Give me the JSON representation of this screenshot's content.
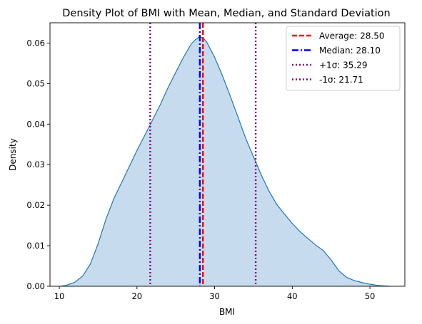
{
  "chart_data": {
    "type": "area",
    "title": "Density Plot of BMI with Mean, Median, and Standard Deviation",
    "xlabel": "BMI",
    "ylabel": "Density",
    "xlim": [
      8.8,
      54.5
    ],
    "ylim": [
      0,
      0.065
    ],
    "xticks": [
      10,
      20,
      30,
      40,
      50
    ],
    "yticks": [
      0.0,
      0.01,
      0.02,
      0.03,
      0.04,
      0.05,
      0.06
    ],
    "grid": false,
    "legend_position": "top-right",
    "fill_color": "#c6dbed",
    "line_color": "#1f77b4",
    "series": [
      {
        "x": [
          10.2,
          11,
          12,
          13,
          14,
          15,
          16,
          17,
          18,
          19,
          20,
          21,
          22,
          23,
          24,
          25,
          26,
          27,
          27.5,
          28,
          28.5,
          29,
          30,
          31,
          32,
          33,
          34,
          35,
          36,
          37,
          38,
          39,
          40,
          41,
          42,
          43,
          44,
          45,
          46,
          47,
          48,
          49,
          50,
          51,
          52.5
        ],
        "y": [
          0.0,
          0.0003,
          0.001,
          0.0025,
          0.0055,
          0.0105,
          0.0165,
          0.0215,
          0.0255,
          0.0295,
          0.0335,
          0.0372,
          0.041,
          0.0448,
          0.049,
          0.0528,
          0.0565,
          0.0598,
          0.0608,
          0.0615,
          0.0613,
          0.0602,
          0.0565,
          0.052,
          0.047,
          0.0418,
          0.0365,
          0.032,
          0.0275,
          0.0235,
          0.0202,
          0.0178,
          0.0155,
          0.0135,
          0.0118,
          0.0102,
          0.0088,
          0.0065,
          0.0038,
          0.0022,
          0.0014,
          0.0009,
          0.0005,
          0.0002,
          0.0
        ]
      }
    ],
    "vlines": [
      {
        "label": "Average: 28.50",
        "x": 28.5,
        "color": "#ff0000",
        "style": "dashed"
      },
      {
        "label": "Median: 28.10",
        "x": 28.1,
        "color": "#0000ff",
        "style": "dashdot"
      },
      {
        "label": "+1σ: 35.29",
        "x": 35.29,
        "color": "#800080",
        "style": "dotted"
      },
      {
        "label": "-1σ: 21.71",
        "x": 21.71,
        "color": "#800080",
        "style": "dotted"
      }
    ]
  }
}
